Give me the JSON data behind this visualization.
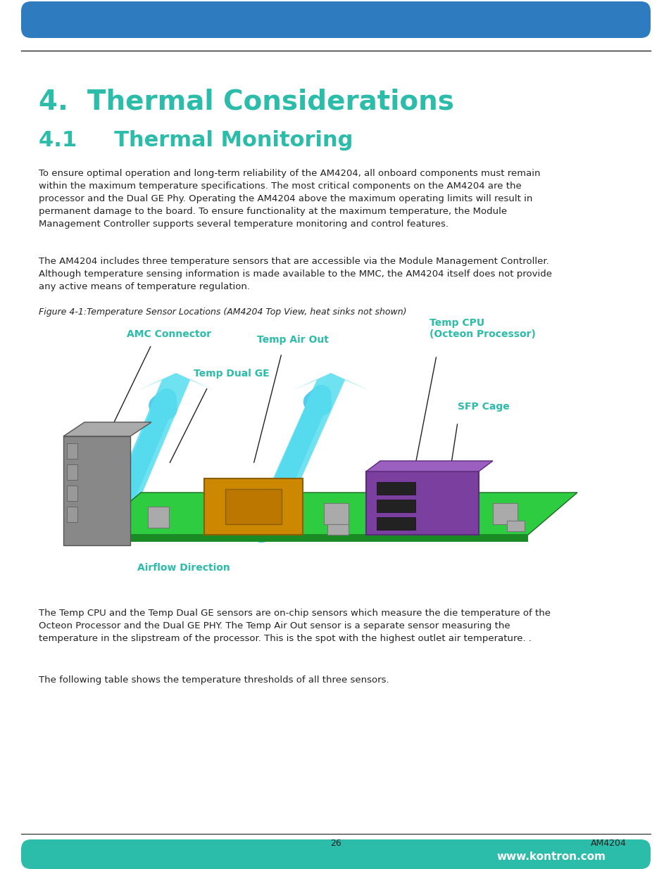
{
  "page_bg": "#ffffff",
  "header_bar_color": "#2e7bbf",
  "footer_bar_color": "#2bbcaa",
  "top_rule_color": "#222222",
  "bottom_rule_color": "#222222",
  "heading1_color": "#2bbcaa",
  "heading2_color": "#2bbcaa",
  "body_text_color": "#222222",
  "label_color": "#2bbcaa",
  "heading1": "4.  Thermal Considerations",
  "heading2": "4.1     Thermal Monitoring",
  "paragraph1": "To ensure optimal operation and long-term reliability of the AM4204, all onboard components must remain\nwithin the maximum temperature specifications. The most critical components on the AM4204 are the\nprocessor and the Dual GE Phy. Operating the AM4204 above the maximum operating limits will result in\npermanent damage to the board. To ensure functionality at the maximum temperature, the Module\nManagement Controller supports several temperature monitoring and control features.",
  "paragraph2": "The AM4204 includes three temperature sensors that are accessible via the Module Management Controller.\nAlthough temperature sensing information is made available to the MMC, the AM4204 itself does not provide\nany active means of temperature regulation.",
  "figure_caption": "Figure 4-1:Temperature Sensor Locations (AM4204 Top View, heat sinks not shown)",
  "paragraph3": "The Temp CPU and the Temp Dual GE sensors are on-chip sensors which measure the die temperature of the\nOcteon Processor and the Dual GE PHY. The Temp Air Out sensor is a separate sensor measuring the\ntemperature in the slipstream of the processor. This is the spot with the highest outlet air temperature. .",
  "paragraph4": "The following table shows the temperature thresholds of all three sensors.",
  "footer_page": "26",
  "footer_right": "AM4204",
  "footer_url": "www.kontron.com",
  "label_amc": "AMC Connector",
  "label_temp_dual": "Temp Dual GE",
  "label_temp_air": "Temp Air Out",
  "label_temp_cpu": "Temp CPU\n(Octeon Processor)",
  "label_sfp": "SFP Cage",
  "label_airflow": "Airflow Direction"
}
